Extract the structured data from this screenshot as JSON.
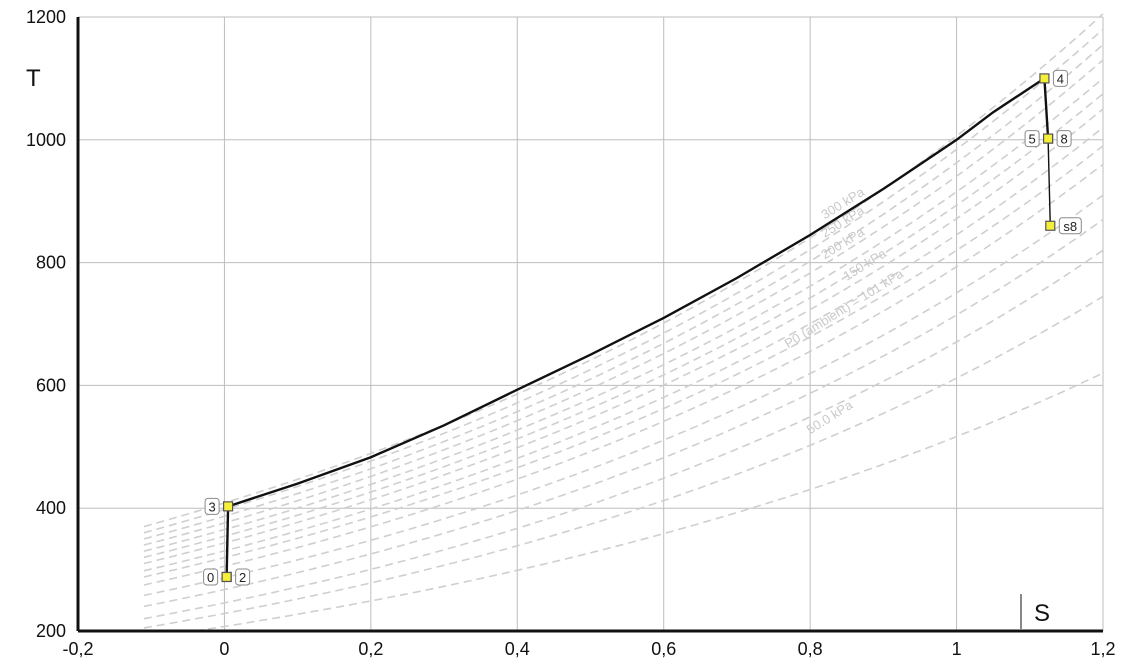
{
  "chart_data": {
    "type": "line",
    "title": "",
    "xlabel": "S",
    "ylabel": "T",
    "xlim": [
      -0.2,
      1.2
    ],
    "ylim": [
      200,
      1200
    ],
    "grid": true,
    "x_ticks": [
      "-0,2",
      "0",
      "0,2",
      "0,4",
      "0,6",
      "0,8",
      "1",
      "1,2"
    ],
    "y_ticks": [
      "200",
      "400",
      "600",
      "800",
      "1000",
      "1200"
    ],
    "cycle": {
      "color": "#111111",
      "points": [
        {
          "label": "0",
          "s": 0.003,
          "T": 288
        },
        {
          "label": "2",
          "s": 0.003,
          "T": 288
        },
        {
          "label": "3",
          "s": 0.005,
          "T": 403
        },
        {
          "label": "4",
          "s": 1.12,
          "T": 1100
        },
        {
          "label": "5",
          "s": 1.125,
          "T": 1002
        },
        {
          "label": "8",
          "s": 1.125,
          "T": 1002
        },
        {
          "label": "s8",
          "s": 1.128,
          "T": 860
        }
      ],
      "heating_curve": [
        [
          0.005,
          403
        ],
        [
          0.1,
          440
        ],
        [
          0.2,
          483
        ],
        [
          0.3,
          535
        ],
        [
          0.4,
          593
        ],
        [
          0.5,
          650
        ],
        [
          0.6,
          710
        ],
        [
          0.7,
          775
        ],
        [
          0.8,
          845
        ],
        [
          0.9,
          920
        ],
        [
          1.0,
          1000
        ],
        [
          1.05,
          1045
        ],
        [
          1.12,
          1100
        ]
      ]
    },
    "isobars": {
      "color": "#cfcfcf",
      "style": "dashed",
      "labels": [
        {
          "text": "300 kPa",
          "s": 0.82,
          "T": 870
        },
        {
          "text": "250 kPa",
          "s": 0.82,
          "T": 840
        },
        {
          "text": "200 kPa",
          "s": 0.82,
          "T": 805
        },
        {
          "text": "150 kPa",
          "s": 0.85,
          "T": 770
        },
        {
          "text": "P0 (ambient) = 101 kPa",
          "s": 0.77,
          "T": 660
        },
        {
          "text": "50.0 kPa",
          "s": 0.8,
          "T": 520
        }
      ],
      "curves": [
        {
          "s_start": -0.11,
          "T_start": 370,
          "s_end": 1.2,
          "T_end": 1205
        },
        {
          "s_start": -0.11,
          "T_start": 360,
          "s_end": 1.2,
          "T_end": 1180
        },
        {
          "s_start": -0.11,
          "T_start": 350,
          "s_end": 1.2,
          "T_end": 1155
        },
        {
          "s_start": -0.11,
          "T_start": 340,
          "s_end": 1.2,
          "T_end": 1130
        },
        {
          "s_start": -0.11,
          "T_start": 330,
          "s_end": 1.2,
          "T_end": 1100
        },
        {
          "s_start": -0.11,
          "T_start": 320,
          "s_end": 1.2,
          "T_end": 1075
        },
        {
          "s_start": -0.11,
          "T_start": 310,
          "s_end": 1.2,
          "T_end": 1050
        },
        {
          "s_start": -0.11,
          "T_start": 298,
          "s_end": 1.2,
          "T_end": 1020
        },
        {
          "s_start": -0.11,
          "T_start": 288,
          "s_end": 1.2,
          "T_end": 990
        },
        {
          "s_start": -0.11,
          "T_start": 275,
          "s_end": 1.2,
          "T_end": 960
        },
        {
          "s_start": -0.11,
          "T_start": 258,
          "s_end": 1.2,
          "T_end": 910
        },
        {
          "s_start": -0.11,
          "T_start": 240,
          "s_end": 1.2,
          "T_end": 870
        },
        {
          "s_start": -0.11,
          "T_start": 220,
          "s_end": 1.2,
          "T_end": 820
        },
        {
          "s_start": -0.11,
          "T_start": 205,
          "s_end": 1.2,
          "T_end": 745
        },
        {
          "s_start": -0.04,
          "T_start": 200,
          "s_end": 1.2,
          "T_end": 620
        }
      ]
    }
  }
}
